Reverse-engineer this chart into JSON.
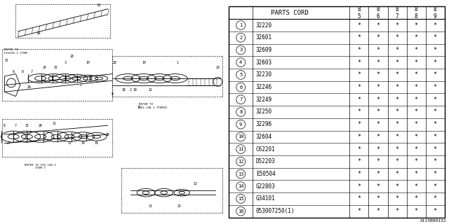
{
  "title": "A115B00132",
  "table_header": "PARTS CORD",
  "col_headers": [
    "85",
    "86",
    "87",
    "88",
    "89"
  ],
  "rows": [
    {
      "num": "1",
      "code": "32220"
    },
    {
      "num": "2",
      "code": "32601"
    },
    {
      "num": "3",
      "code": "32609"
    },
    {
      "num": "4",
      "code": "32603"
    },
    {
      "num": "5",
      "code": "32230"
    },
    {
      "num": "6",
      "code": "32246"
    },
    {
      "num": "7",
      "code": "32249"
    },
    {
      "num": "8",
      "code": "32250"
    },
    {
      "num": "9",
      "code": "32296"
    },
    {
      "num": "10",
      "code": "32604"
    },
    {
      "num": "11",
      "code": "C62201"
    },
    {
      "num": "12",
      "code": "D52203"
    },
    {
      "num": "13",
      "code": "E50504"
    },
    {
      "num": "14",
      "code": "G22803"
    },
    {
      "num": "15",
      "code": "G34101"
    },
    {
      "num": "16",
      "code": "053007250(1)"
    }
  ],
  "bg_color": "#ffffff",
  "line_color": "#000000",
  "star_symbol": "*"
}
